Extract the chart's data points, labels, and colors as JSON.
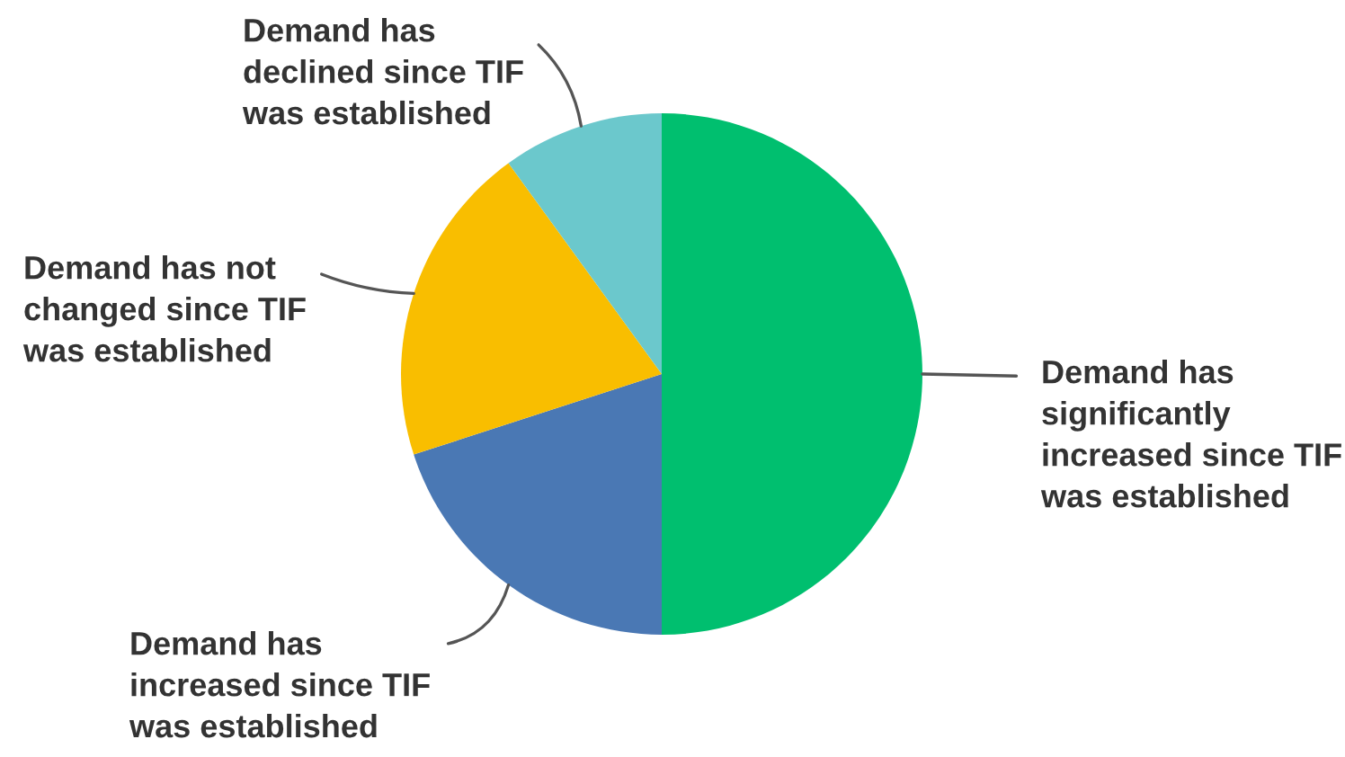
{
  "chart_data": {
    "type": "pie",
    "categories": [
      "Demand has\nsignificantly\nincreased since TIF\nwas established",
      "Demand has\nincreased since TIF\nwas established",
      "Demand has not\nchanged since TIF\nwas established",
      "Demand has\ndeclined since TIF\nwas established"
    ],
    "values": [
      50,
      20,
      20,
      10
    ],
    "colors": [
      "#00bf6f",
      "#4a78b4",
      "#f9be00",
      "#6bc8cc"
    ]
  }
}
